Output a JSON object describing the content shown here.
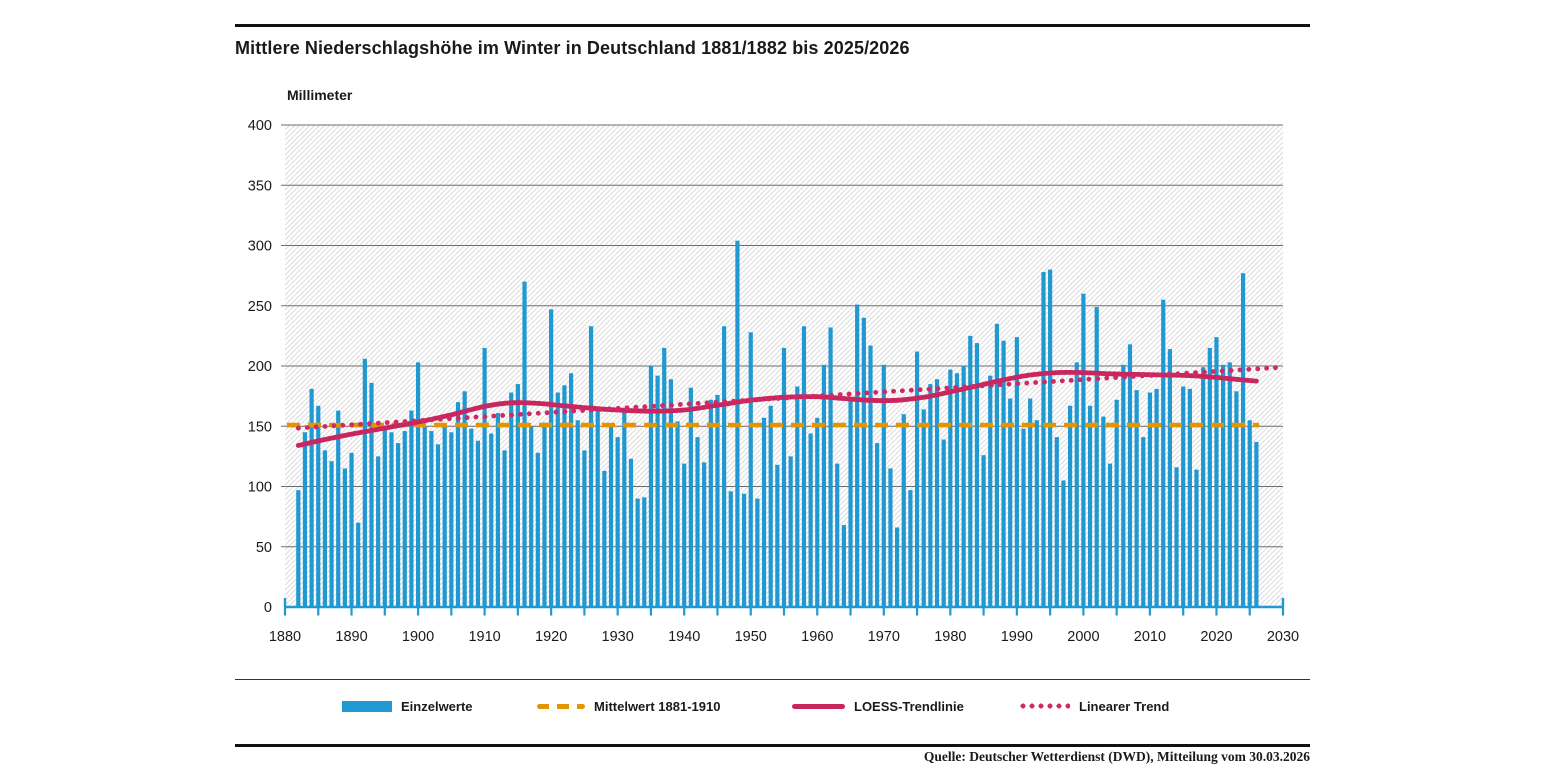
{
  "header": {
    "title": "Mittlere Niederschlagshöhe im Winter in Deutschland 1881/1882 bis 2025/2026"
  },
  "y_axis_unit": "Millimeter",
  "source": "Quelle: Deutscher Wetterdienst (DWD), Mitteilung vom 30.03.2026",
  "legend": {
    "einzelwerte": "Einzelwerte",
    "mittelwert": "Mittelwert 1881-1910",
    "loess": "LOESS-Trendlinie",
    "linear": "Linearer Trend"
  },
  "colors": {
    "bars": "#2098d1",
    "mean": "#e29500",
    "loess": "#c9265f",
    "trend": "#cf2a66",
    "axis": "#2098d1",
    "grid": "#6e6e6e",
    "hatch": "#dcdcdc",
    "text": "#1a1a1a"
  },
  "chart_data": {
    "type": "bar",
    "title": "Mittlere Niederschlagshöhe im Winter in Deutschland 1881/1882 bis 2025/2026",
    "ylabel": "Millimeter",
    "x_axis": {
      "min": 1880,
      "max": 2030,
      "label_step": 10,
      "minor_tick_step": 5
    },
    "y_axis": {
      "min": 0,
      "max": 400,
      "tick_step": 50
    },
    "x_ticks": [
      1880,
      1890,
      1900,
      1910,
      1920,
      1930,
      1940,
      1950,
      1960,
      1970,
      1980,
      1990,
      2000,
      2010,
      2020,
      2030
    ],
    "y_ticks": [
      0,
      50,
      100,
      150,
      200,
      250,
      300,
      350,
      400
    ],
    "grid": true,
    "legend_position": "bottom",
    "bars": {
      "name": "Einzelwerte",
      "start_year": 1882,
      "end_year": 2026,
      "values": [
        97,
        145,
        181,
        167,
        130,
        121,
        163,
        115,
        128,
        70,
        206,
        186,
        125,
        147,
        145,
        136,
        146,
        163,
        203,
        150,
        146,
        135,
        152,
        145,
        170,
        179,
        148,
        138,
        215,
        144,
        161,
        130,
        178,
        185,
        270,
        150,
        128,
        153,
        247,
        178,
        184,
        194,
        155,
        130,
        233,
        163,
        113,
        152,
        141,
        162,
        123,
        90,
        91,
        200,
        192,
        215,
        189,
        154,
        119,
        182,
        141,
        120,
        172,
        176,
        233,
        96,
        304,
        94,
        228,
        90,
        157,
        167,
        118,
        215,
        125,
        183,
        233,
        144,
        157,
        201,
        232,
        119,
        68,
        173,
        251,
        240,
        217,
        136,
        201,
        115,
        66,
        160,
        97,
        212,
        164,
        185,
        189,
        139,
        197,
        194,
        200,
        225,
        219,
        126,
        192,
        235,
        221,
        173,
        224,
        148,
        173,
        155,
        278,
        280,
        141,
        105,
        167,
        203,
        260,
        167,
        249,
        158,
        119,
        172,
        201,
        218,
        180,
        141,
        178,
        181,
        255,
        214,
        116,
        183,
        181,
        114,
        199,
        215,
        224,
        201,
        203,
        179,
        277,
        155,
        137
      ]
    },
    "series": [
      {
        "name": "Mittelwert 1881-1910",
        "style": "dashed",
        "value": 151,
        "span_years": [
          1880.3,
          2026.4
        ]
      },
      {
        "name": "LOESS-Trendlinie",
        "style": "solid",
        "points": [
          [
            1882,
            134
          ],
          [
            1886,
            139
          ],
          [
            1890,
            143.5
          ],
          [
            1895,
            148.5
          ],
          [
            1900,
            153.5
          ],
          [
            1905,
            159.5
          ],
          [
            1910,
            166.5
          ],
          [
            1914,
            169.5
          ],
          [
            1918,
            169
          ],
          [
            1922,
            167
          ],
          [
            1926,
            165
          ],
          [
            1930,
            163.5
          ],
          [
            1935,
            162.5
          ],
          [
            1940,
            163.5
          ],
          [
            1945,
            167.5
          ],
          [
            1950,
            171.5
          ],
          [
            1955,
            174
          ],
          [
            1960,
            174.5
          ],
          [
            1964,
            173
          ],
          [
            1968,
            171.5
          ],
          [
            1972,
            171.5
          ],
          [
            1976,
            174
          ],
          [
            1980,
            178.5
          ],
          [
            1984,
            183.5
          ],
          [
            1988,
            188.5
          ],
          [
            1992,
            192.5
          ],
          [
            1996,
            194.5
          ],
          [
            2000,
            194.5
          ],
          [
            2004,
            193.5
          ],
          [
            2008,
            193
          ],
          [
            2012,
            192.5
          ],
          [
            2016,
            192
          ],
          [
            2020,
            190.5
          ],
          [
            2023,
            189
          ],
          [
            2026,
            187.5
          ]
        ]
      },
      {
        "name": "Linearer Trend",
        "style": "dotted",
        "points": [
          [
            1882,
            148.5
          ],
          [
            2030,
            199
          ]
        ]
      }
    ]
  }
}
